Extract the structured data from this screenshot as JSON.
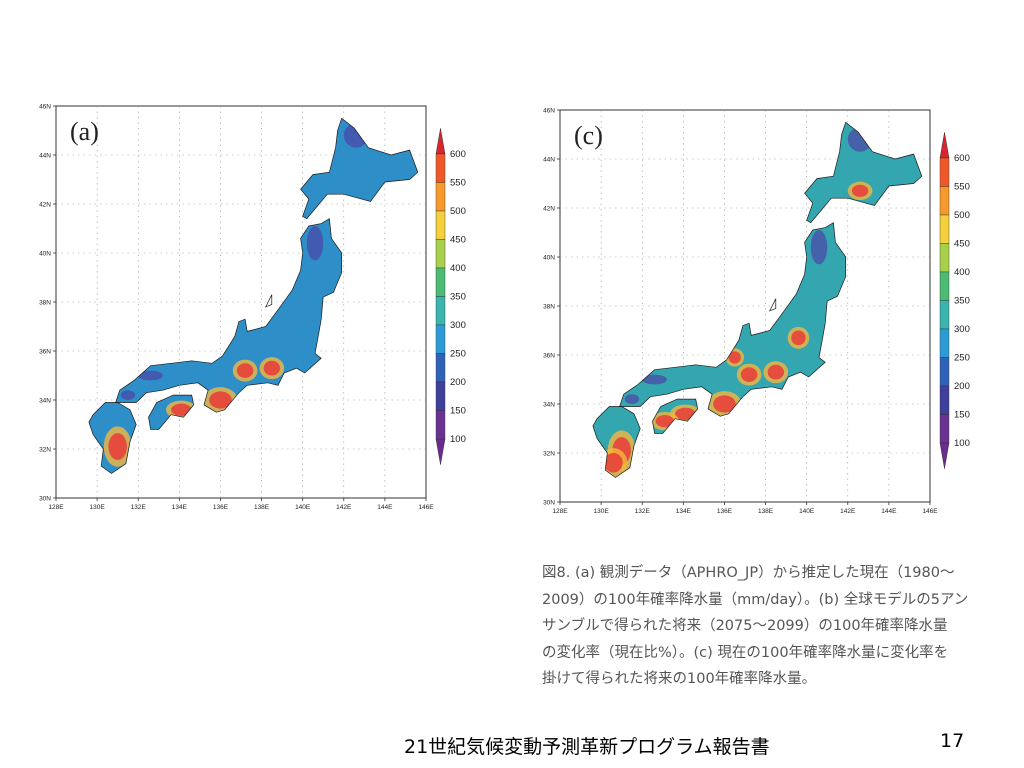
{
  "panels": [
    {
      "id": "a",
      "label": "(a)",
      "lat_labels": [
        "46N",
        "44N",
        "42N",
        "40N",
        "38N",
        "36N",
        "34N",
        "32N",
        "30N"
      ],
      "lon_labels": [
        "128E",
        "130E",
        "132E",
        "134E",
        "136E",
        "138E",
        "140E",
        "142E",
        "144E",
        "146E"
      ],
      "colorbar_labels": [
        "600",
        "550",
        "500",
        "450",
        "400",
        "350",
        "300",
        "250",
        "200",
        "150",
        "100"
      ],
      "colorbar_colors": [
        "#d7262e",
        "#f0582a",
        "#f79a2b",
        "#f4d03c",
        "#a9d04a",
        "#4cbb73",
        "#3bb5b0",
        "#2e9bd6",
        "#2f63b9",
        "#3f3f9c",
        "#6a3391",
        "#6b2b8f"
      ]
    },
    {
      "id": "c",
      "label": "(c)",
      "lat_labels": [
        "46N",
        "44N",
        "42N",
        "40N",
        "38N",
        "36N",
        "34N",
        "32N",
        "30N"
      ],
      "lon_labels": [
        "128E",
        "130E",
        "132E",
        "134E",
        "136E",
        "138E",
        "140E",
        "142E",
        "144E",
        "146E"
      ],
      "colorbar_labels": [
        "600",
        "550",
        "500",
        "450",
        "400",
        "350",
        "300",
        "250",
        "200",
        "150",
        "100"
      ],
      "colorbar_colors": [
        "#d7262e",
        "#f0582a",
        "#f79a2b",
        "#f4d03c",
        "#a9d04a",
        "#4cbb73",
        "#3bb5b0",
        "#2e9bd6",
        "#2f63b9",
        "#3f3f9c",
        "#6a3391",
        "#6b2b8f"
      ]
    }
  ],
  "map_colors": {
    "land_a": "#2e8fc8",
    "land_c": "#34a6b0",
    "high": "#e8413a",
    "mid": "#f4b63e",
    "low": "#4a4aa8",
    "coast": "#1a1a1a"
  },
  "caption": {
    "lines": [
      "図8. (a) 観測データ（APHRO_JP）から推定した現在（1980〜",
      "2009）の100年確率降水量（mm/day）。(b) 全球モデルの5アン",
      "サンブルで得られた将来（2075〜2099）の100年確率降水量",
      "の変化率（現在比%）。(c) 現在の100年確率降水量に変化率を",
      "掛けて得られた将来の100年確率降水量。"
    ]
  },
  "footer": {
    "title": "21世紀気候変動予測革新プログラム報告書",
    "page_number": "17"
  }
}
